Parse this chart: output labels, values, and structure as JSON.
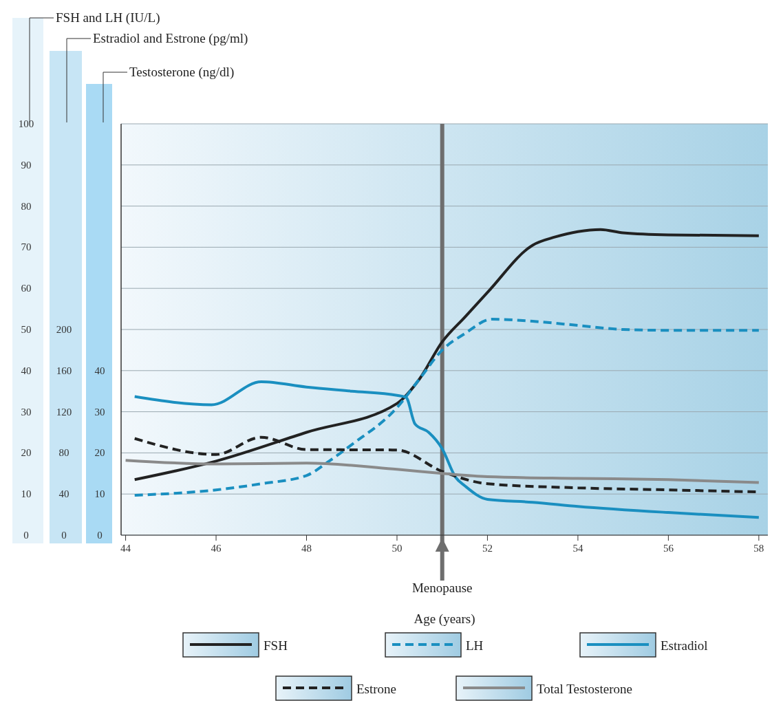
{
  "chart_data": {
    "type": "line",
    "xlabel": "Age (years)",
    "annotations": [
      "FSH and LH (IU/L)",
      "Estradiol and Estrone (pg/ml)",
      "Testosterone (ng/dl)"
    ],
    "xlim": [
      43.9,
      58.2
    ],
    "xticks": [
      44,
      46,
      48,
      50,
      52,
      54,
      56,
      58
    ],
    "ylim": [
      0,
      100
    ],
    "yticks": [
      0,
      10,
      20,
      30,
      40,
      50,
      60,
      70,
      80,
      90,
      100
    ],
    "y2lim": [
      0,
      400
    ],
    "y2ticks": [
      0,
      40,
      80,
      120,
      160,
      200
    ],
    "y3lim": [
      0,
      100
    ],
    "y3ticks": [
      0,
      10,
      20,
      30,
      40
    ],
    "grid": "y",
    "legend": "bottom",
    "marker": "none",
    "ref_lines": [
      {
        "axis": "x",
        "value": 51,
        "label": "Menopause",
        "color": "#6e6e6e"
      }
    ],
    "series": [
      {
        "name": "FSH",
        "color": "#222222",
        "line_style": "solid",
        "x": [
          44.2,
          46,
          48,
          50,
          50.5,
          51,
          51.5,
          52,
          53,
          53.5,
          54,
          54.5,
          55,
          56,
          58
        ],
        "values": [
          13.5,
          18,
          25,
          32,
          38,
          47,
          53,
          59,
          70.5,
          72.5,
          73.8,
          74.3,
          73.5,
          73,
          72.8
        ]
      },
      {
        "name": "LH",
        "color": "#1a8fc0",
        "line_style": "dashed",
        "x": [
          44.2,
          46,
          47,
          48,
          48.5,
          49,
          50,
          50.5,
          51,
          51.5,
          52.1,
          53,
          54,
          55,
          56,
          58
        ],
        "values": [
          9.7,
          11,
          12.5,
          14.5,
          18,
          22,
          31,
          38,
          45,
          49,
          52.5,
          52,
          51,
          50,
          49.8,
          49.8
        ]
      },
      {
        "name": "Estradiol",
        "color": "#1a8fc0",
        "line_style": "solid",
        "axis": "y2",
        "x": [
          44.2,
          45.9,
          47,
          48,
          49,
          50,
          50.2,
          50.4,
          50.7,
          51,
          51.3,
          51.5,
          52,
          53,
          54,
          56,
          58
        ],
        "values": [
          134.8,
          126.8,
          149.2,
          144,
          140,
          136,
          134,
          108,
          100,
          84,
          56,
          48,
          34.8,
          32,
          28,
          22,
          17.2
        ]
      },
      {
        "name": "Estrone",
        "color": "#222222",
        "line_style": "dashed",
        "axis": "y2",
        "x": [
          44.2,
          46,
          47,
          48,
          50,
          51,
          52,
          54,
          56,
          58
        ],
        "values": [
          94,
          78.4,
          95.2,
          83.2,
          82.8,
          62,
          50,
          46,
          44,
          42
        ]
      },
      {
        "name": "Total Testosterone",
        "color": "#8a8a8a",
        "line_style": "solid",
        "axis": "y3",
        "x": [
          44,
          46,
          48,
          50,
          51,
          52,
          54,
          56,
          58
        ],
        "values": [
          18.2,
          17.3,
          17.5,
          16,
          15,
          14.2,
          13.8,
          13.5,
          12.8
        ]
      }
    ]
  }
}
